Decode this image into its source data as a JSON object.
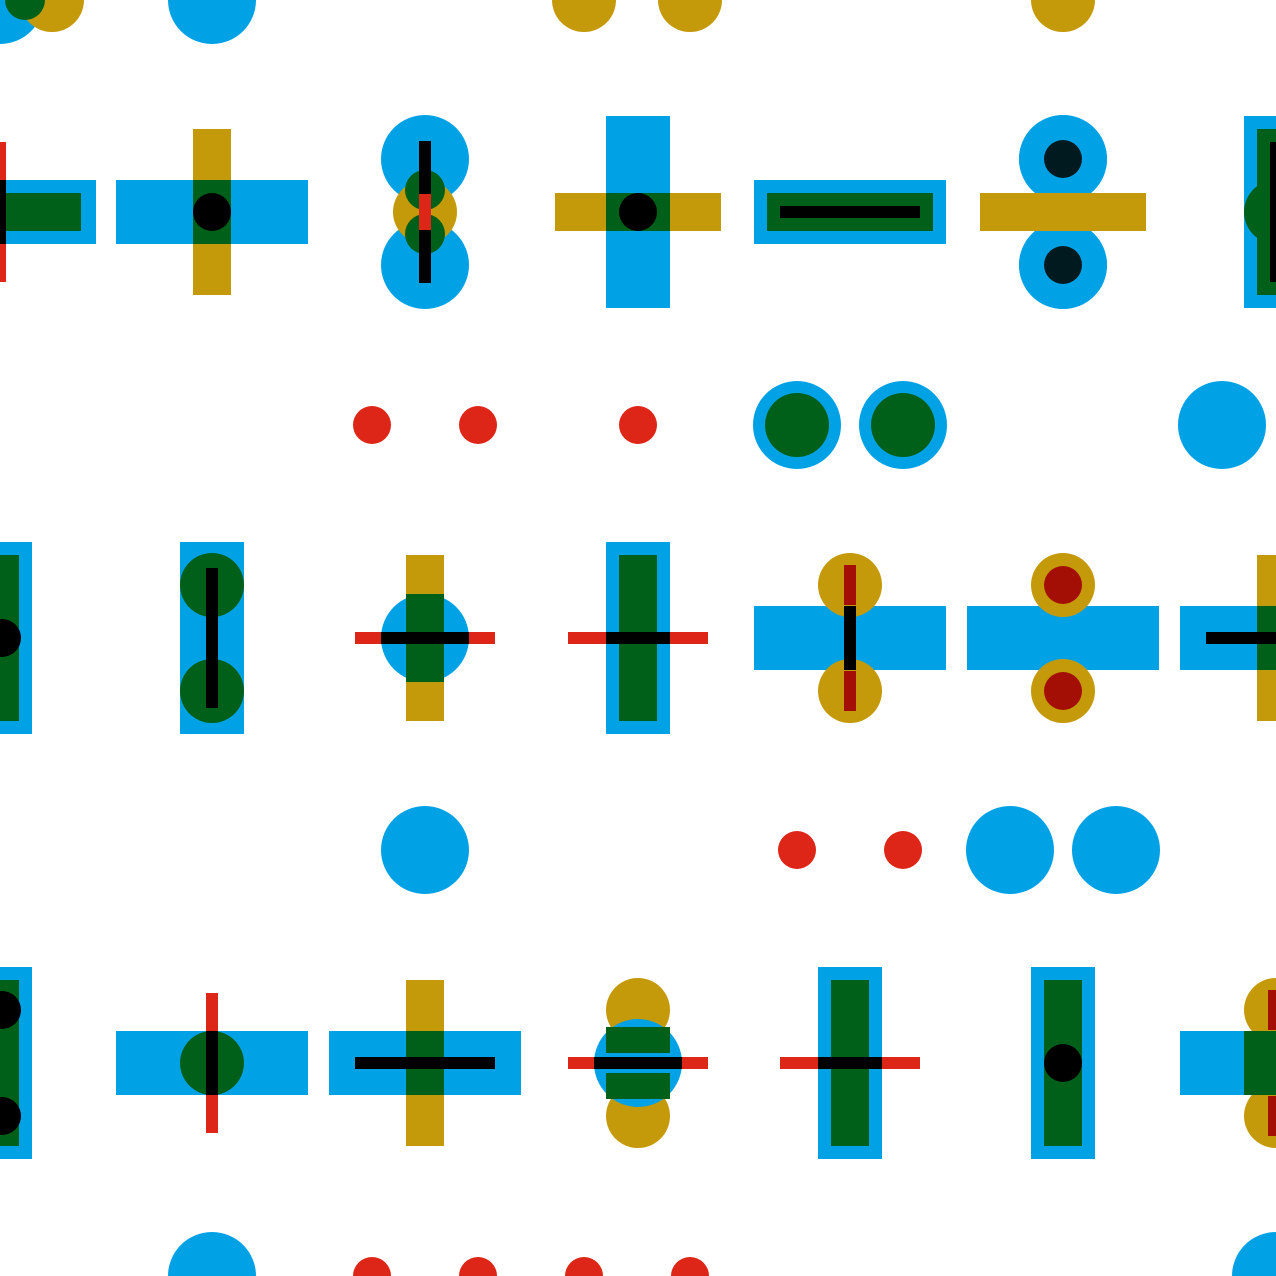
{
  "palette": {
    "background": "#ffffff",
    "blue": "#00a2e5",
    "ochre": "#c49a0a",
    "green": "#00601a",
    "red": "#dd2618",
    "dark_red": "#a30f05",
    "dark_navy": "#001a1f",
    "black": "#000000"
  },
  "pattern": {
    "description_visible": "",
    "motif_names": [
      "plus",
      "minus",
      "times",
      "divide",
      "dot",
      "circle",
      "bar"
    ]
  }
}
